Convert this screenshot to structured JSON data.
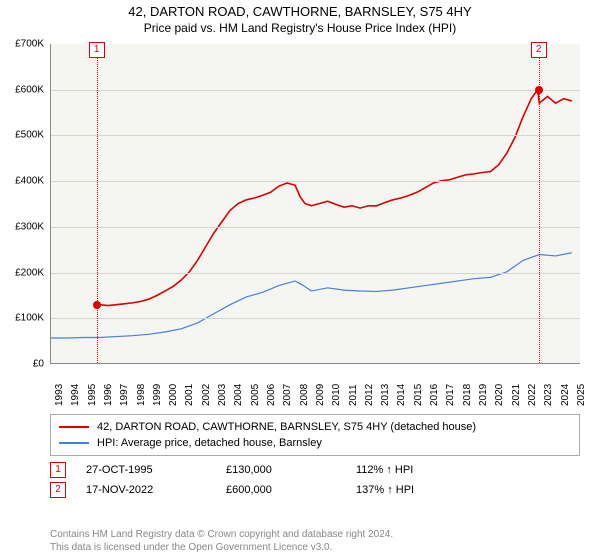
{
  "header": {
    "line1": "42, DARTON ROAD, CAWTHORNE, BARNSLEY, S75 4HY",
    "line2": "Price paid vs. HM Land Registry's House Price Index (HPI)"
  },
  "chart": {
    "type": "line",
    "background_color": "#f5f5f2",
    "grid_color": "#d6d4c8",
    "axis_color": "#888888",
    "xlim": [
      1993,
      2025.5
    ],
    "ylim": [
      0,
      700000
    ],
    "ytick_step": 100000,
    "yticks": [
      {
        "v": 0,
        "label": "£0"
      },
      {
        "v": 100000,
        "label": "£100K"
      },
      {
        "v": 200000,
        "label": "£200K"
      },
      {
        "v": 300000,
        "label": "£300K"
      },
      {
        "v": 400000,
        "label": "£400K"
      },
      {
        "v": 500000,
        "label": "£500K"
      },
      {
        "v": 600000,
        "label": "£600K"
      },
      {
        "v": 700000,
        "label": "£700K"
      }
    ],
    "xticks": [
      1993,
      1994,
      1995,
      1996,
      1997,
      1998,
      1999,
      2000,
      2001,
      2002,
      2003,
      2004,
      2005,
      2006,
      2007,
      2008,
      2009,
      2010,
      2011,
      2012,
      2013,
      2014,
      2015,
      2016,
      2017,
      2018,
      2019,
      2020,
      2021,
      2022,
      2023,
      2024,
      2025
    ],
    "label_fontsize": 10,
    "series": [
      {
        "name": "property",
        "color": "#dd0000",
        "line_width": 1.6,
        "points": [
          [
            1995.8,
            130000
          ],
          [
            1996,
            128000
          ],
          [
            1996.5,
            126000
          ],
          [
            1997,
            128000
          ],
          [
            1997.5,
            130000
          ],
          [
            1998,
            132000
          ],
          [
            1998.5,
            135000
          ],
          [
            1999,
            140000
          ],
          [
            1999.5,
            148000
          ],
          [
            2000,
            158000
          ],
          [
            2000.5,
            168000
          ],
          [
            2001,
            182000
          ],
          [
            2001.5,
            200000
          ],
          [
            2002,
            225000
          ],
          [
            2002.5,
            255000
          ],
          [
            2003,
            285000
          ],
          [
            2003.5,
            310000
          ],
          [
            2004,
            335000
          ],
          [
            2004.5,
            350000
          ],
          [
            2005,
            358000
          ],
          [
            2005.5,
            362000
          ],
          [
            2006,
            368000
          ],
          [
            2006.5,
            375000
          ],
          [
            2007,
            388000
          ],
          [
            2007.5,
            395000
          ],
          [
            2008,
            390000
          ],
          [
            2008.3,
            365000
          ],
          [
            2008.6,
            350000
          ],
          [
            2009,
            345000
          ],
          [
            2009.5,
            350000
          ],
          [
            2010,
            355000
          ],
          [
            2010.5,
            348000
          ],
          [
            2011,
            342000
          ],
          [
            2011.5,
            345000
          ],
          [
            2012,
            340000
          ],
          [
            2012.5,
            345000
          ],
          [
            2013,
            345000
          ],
          [
            2013.5,
            352000
          ],
          [
            2014,
            358000
          ],
          [
            2014.5,
            362000
          ],
          [
            2015,
            368000
          ],
          [
            2015.5,
            375000
          ],
          [
            2016,
            385000
          ],
          [
            2016.5,
            395000
          ],
          [
            2017,
            400000
          ],
          [
            2017.5,
            402000
          ],
          [
            2018,
            408000
          ],
          [
            2018.5,
            413000
          ],
          [
            2019,
            415000
          ],
          [
            2019.5,
            418000
          ],
          [
            2020,
            420000
          ],
          [
            2020.5,
            435000
          ],
          [
            2021,
            460000
          ],
          [
            2021.5,
            495000
          ],
          [
            2022,
            540000
          ],
          [
            2022.5,
            580000
          ],
          [
            2022.9,
            600000
          ],
          [
            2023,
            570000
          ],
          [
            2023.5,
            585000
          ],
          [
            2024,
            570000
          ],
          [
            2024.5,
            580000
          ],
          [
            2025,
            575000
          ]
        ]
      },
      {
        "name": "hpi",
        "color": "#4a7fd6",
        "line_width": 1.2,
        "points": [
          [
            1993,
            55000
          ],
          [
            1994,
            55000
          ],
          [
            1995,
            56000
          ],
          [
            1996,
            56000
          ],
          [
            1997,
            58000
          ],
          [
            1998,
            60000
          ],
          [
            1999,
            63000
          ],
          [
            2000,
            68000
          ],
          [
            2001,
            75000
          ],
          [
            2002,
            88000
          ],
          [
            2003,
            108000
          ],
          [
            2004,
            128000
          ],
          [
            2005,
            145000
          ],
          [
            2006,
            155000
          ],
          [
            2007,
            170000
          ],
          [
            2008,
            180000
          ],
          [
            2008.5,
            170000
          ],
          [
            2009,
            158000
          ],
          [
            2010,
            165000
          ],
          [
            2011,
            160000
          ],
          [
            2012,
            158000
          ],
          [
            2013,
            157000
          ],
          [
            2014,
            160000
          ],
          [
            2015,
            165000
          ],
          [
            2016,
            170000
          ],
          [
            2017,
            175000
          ],
          [
            2018,
            180000
          ],
          [
            2019,
            185000
          ],
          [
            2020,
            188000
          ],
          [
            2021,
            200000
          ],
          [
            2022,
            225000
          ],
          [
            2023,
            238000
          ],
          [
            2024,
            235000
          ],
          [
            2025,
            242000
          ]
        ]
      }
    ],
    "markers": [
      {
        "n": "1",
        "x": 1995.8,
        "y": 130000
      },
      {
        "n": "2",
        "x": 2022.9,
        "y": 600000
      }
    ],
    "marker_line_color": "#dd0000",
    "marker_box_border": "#dd0000",
    "dot_color": "#dd0000"
  },
  "legend": {
    "items": [
      {
        "color": "#dd0000",
        "label": "42, DARTON ROAD, CAWTHORNE, BARNSLEY, S75 4HY (detached house)"
      },
      {
        "color": "#4a7fd6",
        "label": "HPI: Average price, detached house, Barnsley"
      }
    ]
  },
  "sales": [
    {
      "n": "1",
      "date": "27-OCT-1995",
      "price": "£130,000",
      "hpi": "112% ↑ HPI"
    },
    {
      "n": "2",
      "date": "17-NOV-2022",
      "price": "£600,000",
      "hpi": "137% ↑ HPI"
    }
  ],
  "footer": {
    "line1": "Contains HM Land Registry data © Crown copyright and database right 2024.",
    "line2": "This data is licensed under the Open Government Licence v3.0."
  }
}
